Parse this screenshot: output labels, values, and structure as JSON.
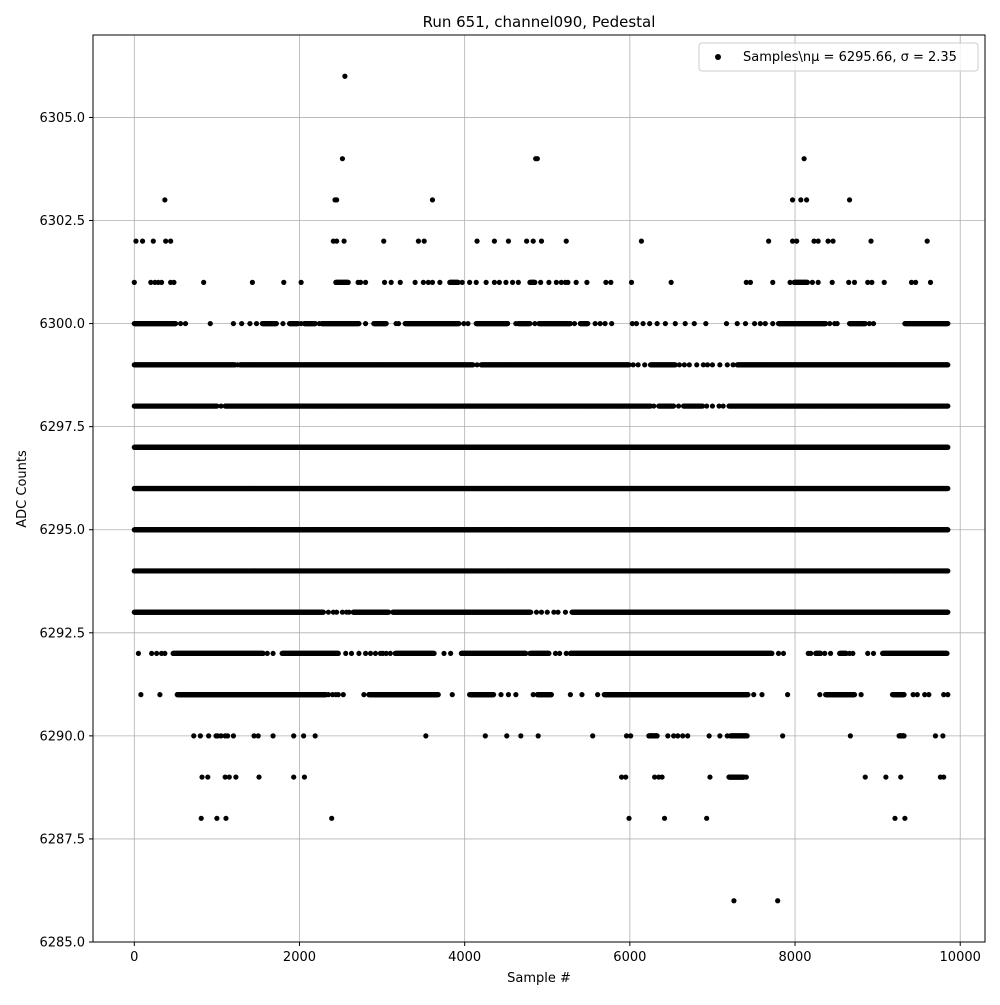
{
  "chart_data": {
    "type": "scatter",
    "title": "Run 651, channel090, Pedestal",
    "xlabel": "Sample #",
    "ylabel": "ADC Counts",
    "xlim": [
      -500,
      10300
    ],
    "ylim": [
      6285.0,
      6307.0
    ],
    "xticks": [
      0,
      2000,
      4000,
      6000,
      8000,
      10000
    ],
    "xtick_labels": [
      "0",
      "2000",
      "4000",
      "6000",
      "8000",
      "10000"
    ],
    "yticks": [
      6285.0,
      6287.5,
      6290.0,
      6292.5,
      6295.0,
      6297.5,
      6300.0,
      6302.5,
      6305.0
    ],
    "ytick_labels": [
      "6285.0",
      "6287.5",
      "6290.0",
      "6292.5",
      "6295.0",
      "6297.5",
      "6300.0",
      "6302.5",
      "6305.0"
    ],
    "grid": true,
    "legend": {
      "position": "top-right",
      "label": "Samples\\nμ = 6295.66, σ = 2.35",
      "marker_color": "#000000"
    },
    "marker_color": "#000000",
    "n_samples": 9855,
    "sample_interval": 5,
    "levels": [
      {
        "adc": 6286,
        "segments": [],
        "points": [
          7260,
          7790
        ]
      },
      {
        "adc": 6288,
        "segments": [],
        "points": [
          810,
          1000,
          1110,
          2390,
          5990,
          6420,
          6930,
          9210,
          9330
        ]
      },
      {
        "adc": 6289,
        "segments": [
          [
            7200,
            7380
          ]
        ],
        "points": [
          820,
          890,
          1100,
          1150,
          1230,
          1510,
          1930,
          2060,
          5900,
          5950,
          6300,
          6350,
          6390,
          6970,
          7410,
          8850,
          9100,
          9280,
          9760,
          9800
        ]
      },
      {
        "adc": 6290,
        "segments": [
          [
            6230,
            6330
          ],
          [
            7220,
            7420
          ],
          [
            9260,
            9320
          ]
        ],
        "points": [
          720,
          800,
          900,
          990,
          1010,
          1050,
          1100,
          1130,
          1200,
          1450,
          1500,
          1680,
          1930,
          2050,
          2190,
          3530,
          4250,
          4510,
          4680,
          4890,
          5550,
          5960,
          6010,
          6460,
          6530,
          6580,
          6640,
          6700,
          6960,
          7090,
          7180,
          7850,
          8670,
          9700,
          9790
        ]
      },
      {
        "adc": 6291,
        "segments": [
          [
            520,
            2320
          ],
          [
            2840,
            3680
          ],
          [
            4060,
            4350
          ],
          [
            4880,
            5050
          ],
          [
            5690,
            7430
          ],
          [
            8370,
            8720
          ],
          [
            9180,
            9320
          ]
        ],
        "points": [
          80,
          310,
          2350,
          2400,
          2440,
          2470,
          2530,
          2780,
          3850,
          4090,
          4440,
          4530,
          4620,
          4830,
          5280,
          5420,
          5610,
          7500,
          7600,
          7910,
          8300,
          8800,
          9430,
          9480,
          9570,
          9620,
          9800,
          9850
        ]
      },
      {
        "adc": 6292,
        "segments": [
          [
            470,
            1560
          ],
          [
            1790,
            2470
          ],
          [
            3160,
            3630
          ],
          [
            3960,
            4740
          ],
          [
            4800,
            5020
          ],
          [
            5280,
            7720
          ],
          [
            8250,
            8310
          ],
          [
            8540,
            8620
          ],
          [
            9060,
            9840
          ]
        ],
        "points": [
          50,
          210,
          270,
          330,
          370,
          1610,
          1680,
          2560,
          2630,
          2720,
          2800,
          2860,
          2920,
          2980,
          3010,
          3050,
          3100,
          3750,
          3830,
          4790,
          5100,
          5150,
          5230,
          7800,
          7860,
          8160,
          8190,
          8360,
          8430,
          8660,
          8700,
          8880,
          8950
        ]
      },
      {
        "adc": 6293,
        "segments": [
          [
            0,
            2290
          ],
          [
            2650,
            3080
          ],
          [
            3130,
            4800
          ],
          [
            5300,
            9850
          ]
        ],
        "points": [
          2350,
          2410,
          2450,
          2520,
          2570,
          2600,
          4870,
          4930,
          5000,
          5080,
          5130,
          5220
        ]
      },
      {
        "adc": 6294,
        "segments": [
          [
            0,
            9850
          ]
        ],
        "points": []
      },
      {
        "adc": 6295,
        "segments": [
          [
            0,
            9850
          ]
        ],
        "points": []
      },
      {
        "adc": 6296,
        "segments": [
          [
            0,
            9850
          ]
        ],
        "points": []
      },
      {
        "adc": 6297,
        "segments": [
          [
            0,
            9850
          ]
        ],
        "points": []
      },
      {
        "adc": 6298,
        "segments": [
          [
            0,
            1000
          ],
          [
            1100,
            6250
          ],
          [
            6350,
            6530
          ],
          [
            6650,
            6880
          ],
          [
            7200,
            9850
          ]
        ],
        "points": [
          1050,
          6290,
          6590,
          6930,
          7000,
          7080,
          7130
        ]
      },
      {
        "adc": 6299,
        "segments": [
          [
            0,
            1220
          ],
          [
            1280,
            4100
          ],
          [
            4200,
            5990
          ],
          [
            6250,
            6550
          ],
          [
            7300,
            9850
          ]
        ],
        "points": [
          1250,
          4150,
          6040,
          6100,
          6180,
          6600,
          6660,
          6720,
          6810,
          6890,
          6940,
          7000,
          7090,
          7180,
          7250
        ]
      },
      {
        "adc": 6300,
        "segments": [
          [
            0,
            500
          ],
          [
            1550,
            1720
          ],
          [
            1880,
            1980
          ],
          [
            2060,
            2190
          ],
          [
            2270,
            2720
          ],
          [
            2900,
            3050
          ],
          [
            3280,
            3930
          ],
          [
            4140,
            4520
          ],
          [
            4650,
            4790
          ],
          [
            4900,
            5280
          ],
          [
            5400,
            5490
          ],
          [
            7800,
            8370
          ],
          [
            8660,
            8850
          ],
          [
            9330,
            9850
          ]
        ],
        "points": [
          560,
          620,
          920,
          1200,
          1300,
          1400,
          1480,
          1800,
          2020,
          2240,
          2800,
          3170,
          3200,
          3990,
          4040,
          4620,
          4850,
          5330,
          5580,
          5640,
          5700,
          5780,
          6030,
          6080,
          6160,
          6240,
          6330,
          6430,
          6550,
          6670,
          6780,
          6920,
          7170,
          7300,
          7400,
          7510,
          7580,
          7640,
          7730,
          8420,
          8480,
          8510,
          8900,
          8950
        ]
      },
      {
        "adc": 6301,
        "segments": [
          [
            2440,
            2590
          ],
          [
            3820,
            3920
          ],
          [
            4790,
            4850
          ],
          [
            7990,
            8150
          ]
        ],
        "points": [
          0,
          200,
          250,
          290,
          330,
          440,
          480,
          840,
          1430,
          1810,
          2020,
          2710,
          2740,
          2800,
          3030,
          3110,
          3220,
          3400,
          3500,
          3560,
          3610,
          3700,
          3970,
          4060,
          4140,
          4260,
          4360,
          4420,
          4500,
          4580,
          4650,
          4920,
          5020,
          5110,
          5170,
          5220,
          5250,
          5350,
          5480,
          5710,
          5770,
          6020,
          6500,
          7410,
          7460,
          7730,
          7940,
          8210,
          8280,
          8450,
          8650,
          8720,
          8880,
          8930,
          9080,
          9410,
          9460,
          9640
        ]
      },
      {
        "adc": 6302,
        "segments": [],
        "points": [
          20,
          100,
          230,
          380,
          440,
          2410,
          2450,
          2540,
          3020,
          3440,
          3510,
          4150,
          4360,
          4530,
          4750,
          4830,
          4930,
          5230,
          6140,
          7680,
          7970,
          8020,
          8230,
          8280,
          8400,
          8460,
          8920,
          9600
        ]
      },
      {
        "adc": 6303,
        "segments": [],
        "points": [
          370,
          2430,
          2450,
          3610,
          7970,
          8070,
          8140,
          8660
        ]
      },
      {
        "adc": 6304,
        "segments": [],
        "points": [
          2520,
          4860,
          4880,
          8110
        ]
      },
      {
        "adc": 6306,
        "segments": [],
        "points": [
          2550
        ]
      }
    ]
  }
}
